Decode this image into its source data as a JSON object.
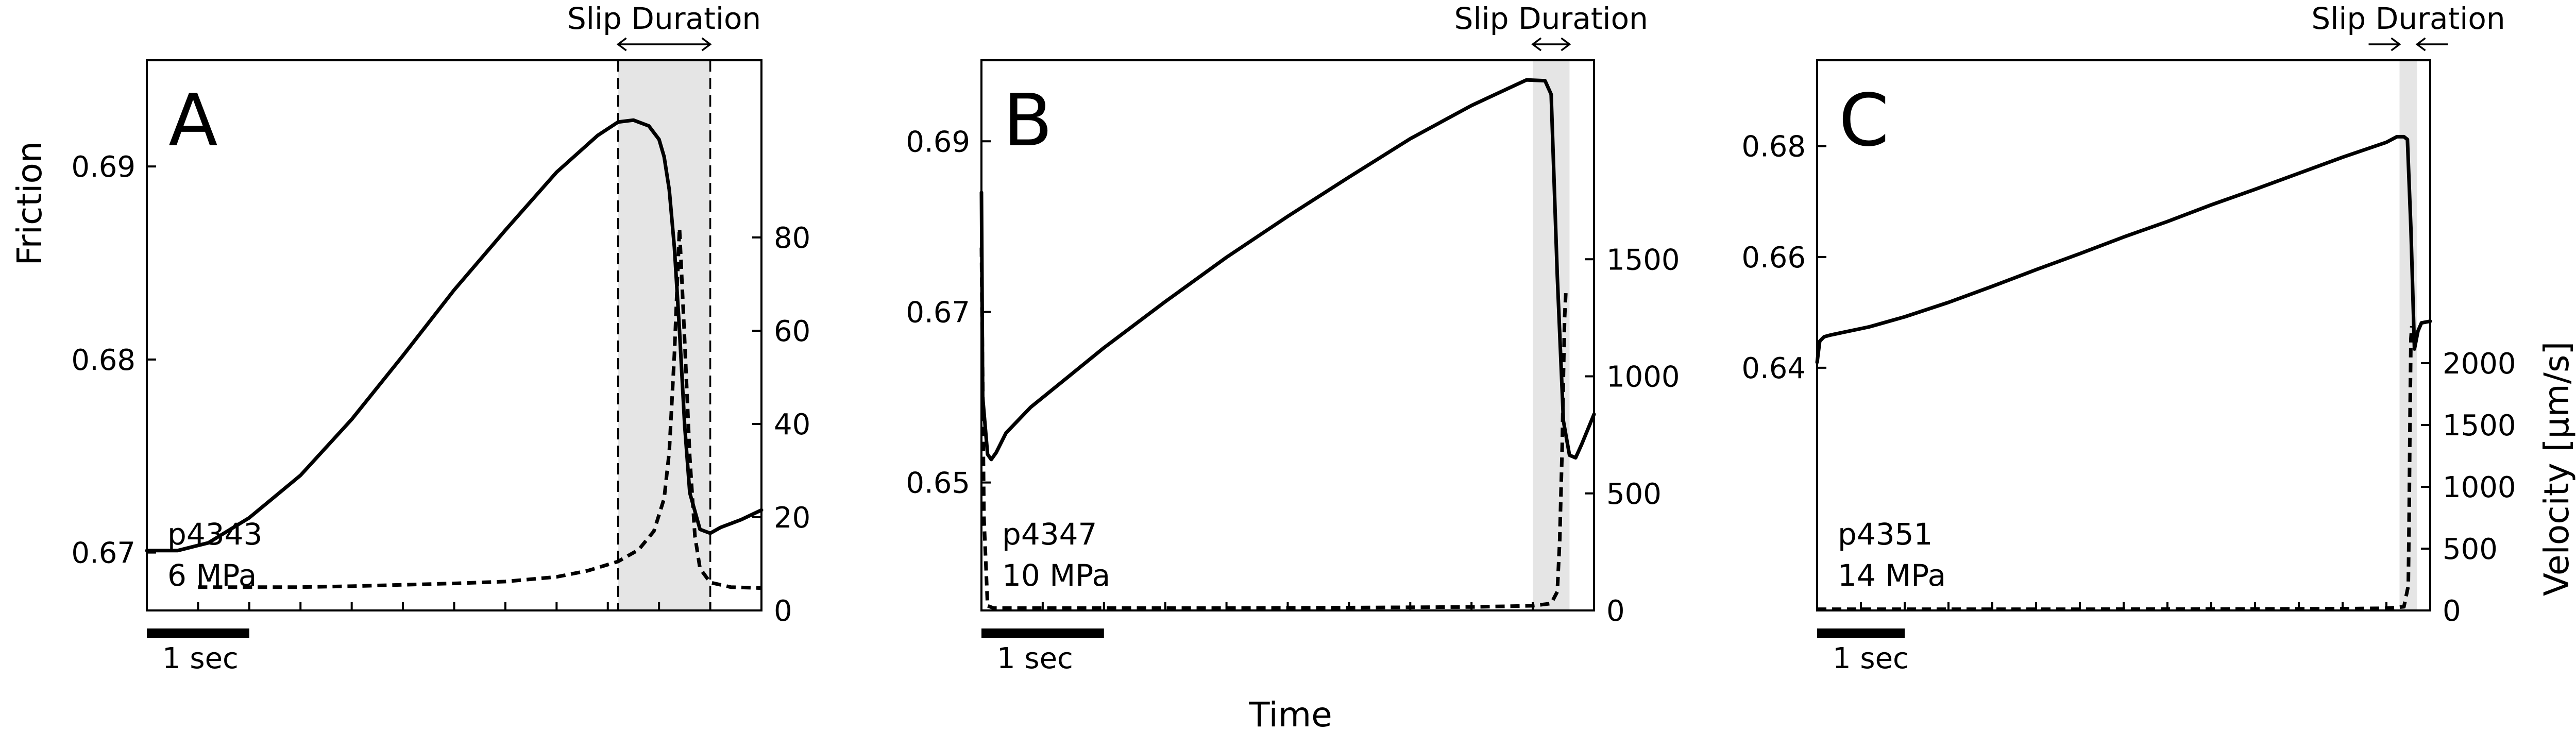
{
  "figure": {
    "shared_xlabel": "Time",
    "friction_axis_label": "Friction",
    "velocity_axis_label": "Velocity [μm/s]",
    "slip_label": "Slip Duration",
    "scale_bar_label": "1 sec",
    "style": {
      "line_color": "#000000",
      "shade_color": "#e5e5e5",
      "background": "#ffffff"
    }
  },
  "chart_data": [
    {
      "type": "line",
      "panel": "A",
      "sample": "p4343",
      "stress": "6 MPa",
      "x_unit": "s",
      "xlim": [
        0,
        6.0
      ],
      "ylim_friction": [
        0.667,
        0.6955
      ],
      "ylim_velocity": [
        0,
        118
      ],
      "friction_ticks": [
        0.67,
        0.68,
        0.69
      ],
      "velocity_ticks": [
        0,
        20,
        40,
        60,
        80
      ],
      "slip_window": [
        4.6,
        5.5
      ],
      "scale_bar_seconds": 1,
      "series": [
        {
          "name": "Friction",
          "axis": "friction",
          "x": [
            0,
            0.3,
            0.6,
            1.0,
            1.5,
            2.0,
            2.5,
            3.0,
            3.5,
            4.0,
            4.4,
            4.6,
            4.75,
            4.9,
            5.0,
            5.05,
            5.1,
            5.15,
            5.2,
            5.25,
            5.3,
            5.4,
            5.5,
            5.6,
            5.8,
            6.0
          ],
          "y": [
            0.6701,
            0.6701,
            0.6705,
            0.6718,
            0.674,
            0.6769,
            0.6802,
            0.6836,
            0.6867,
            0.6897,
            0.6916,
            0.6923,
            0.6924,
            0.6921,
            0.6914,
            0.6905,
            0.6888,
            0.6858,
            0.6815,
            0.6766,
            0.6731,
            0.6712,
            0.671,
            0.6713,
            0.6717,
            0.6722
          ]
        },
        {
          "name": "Velocity",
          "axis": "velocity",
          "x": [
            0.5,
            1.0,
            1.5,
            2.0,
            2.5,
            3.0,
            3.5,
            4.0,
            4.3,
            4.6,
            4.8,
            4.95,
            5.05,
            5.1,
            5.15,
            5.2,
            5.25,
            5.3,
            5.35,
            5.4,
            5.5,
            5.7,
            6.0
          ],
          "y": [
            5,
            5,
            5,
            5.2,
            5.5,
            5.8,
            6.2,
            7.2,
            8.5,
            10.5,
            13,
            17,
            24,
            34,
            55,
            82,
            58,
            33,
            16,
            9,
            6,
            5,
            4.8
          ]
        }
      ]
    },
    {
      "type": "line",
      "panel": "B",
      "sample": "p4347",
      "stress": "10 MPa",
      "x_unit": "s",
      "xlim": [
        0,
        5.0
      ],
      "ylim_friction": [
        0.635,
        0.6995
      ],
      "ylim_velocity": [
        0,
        2350
      ],
      "friction_ticks": [
        0.65,
        0.67,
        0.69
      ],
      "velocity_ticks": [
        0,
        500,
        1000,
        1500
      ],
      "slip_window": [
        4.5,
        4.8
      ],
      "scale_bar_seconds": 1,
      "series": [
        {
          "name": "Friction",
          "axis": "friction",
          "x": [
            0,
            0.01,
            0.05,
            0.08,
            0.12,
            0.2,
            0.4,
            0.7,
            1.0,
            1.5,
            2.0,
            2.5,
            3.0,
            3.5,
            4.0,
            4.3,
            4.45,
            4.6,
            4.65,
            4.7,
            4.75,
            4.8,
            4.85,
            4.9,
            5.0
          ],
          "y": [
            0.684,
            0.66,
            0.6533,
            0.6527,
            0.6535,
            0.6558,
            0.6588,
            0.6623,
            0.6658,
            0.6712,
            0.6764,
            0.6812,
            0.6858,
            0.6903,
            0.6942,
            0.6962,
            0.6972,
            0.6971,
            0.6955,
            0.6742,
            0.6572,
            0.6532,
            0.6529,
            0.6545,
            0.658
          ]
        },
        {
          "name": "Velocity",
          "axis": "velocity",
          "x": [
            0,
            0.02,
            0.05,
            0.1,
            1.0,
            2.0,
            3.0,
            4.0,
            4.5,
            4.65,
            4.7,
            4.72,
            4.74,
            4.75,
            4.76,
            4.77,
            4.78
          ],
          "y": [
            1550,
            400,
            20,
            10,
            10,
            10,
            12,
            15,
            20,
            30,
            80,
            300,
            700,
            1000,
            1250,
            1360,
            1360
          ]
        }
      ]
    },
    {
      "type": "line",
      "panel": "C",
      "sample": "p4351",
      "stress": "14 MPa",
      "x_unit": "s",
      "xlim": [
        0,
        7.0
      ],
      "ylim_friction": [
        0.5962,
        0.6955
      ],
      "ylim_velocity": [
        0,
        4450
      ],
      "friction_ticks": [
        0.64,
        0.66,
        0.68
      ],
      "velocity_ticks": [
        0,
        500,
        1000,
        1500,
        2000
      ],
      "slip_window": [
        6.65,
        6.85
      ],
      "scale_bar_seconds": 1,
      "series": [
        {
          "name": "Friction",
          "axis": "friction",
          "x": [
            0,
            0.03,
            0.08,
            0.15,
            0.3,
            0.6,
            1.0,
            1.5,
            2.0,
            2.5,
            3.0,
            3.5,
            4.0,
            4.5,
            5.0,
            5.5,
            6.0,
            6.5,
            6.62,
            6.7,
            6.74,
            6.78,
            6.82,
            6.86,
            6.9,
            7.0
          ],
          "y": [
            0.641,
            0.6448,
            0.6456,
            0.6459,
            0.6464,
            0.6474,
            0.6492,
            0.6518,
            0.6547,
            0.6577,
            0.6606,
            0.6636,
            0.6664,
            0.6694,
            0.6722,
            0.6751,
            0.678,
            0.6807,
            0.6817,
            0.6817,
            0.6812,
            0.665,
            0.6434,
            0.6466,
            0.6481,
            0.6484
          ]
        },
        {
          "name": "Velocity",
          "axis": "velocity",
          "x": [
            0,
            1.0,
            2.0,
            3.0,
            4.0,
            5.0,
            6.0,
            6.5,
            6.7,
            6.75,
            6.76,
            6.77,
            6.78,
            6.79
          ],
          "y": [
            10,
            10,
            10,
            10,
            11,
            12,
            14,
            18,
            30,
            200,
            800,
            1600,
            2200,
            2300
          ]
        }
      ]
    }
  ]
}
